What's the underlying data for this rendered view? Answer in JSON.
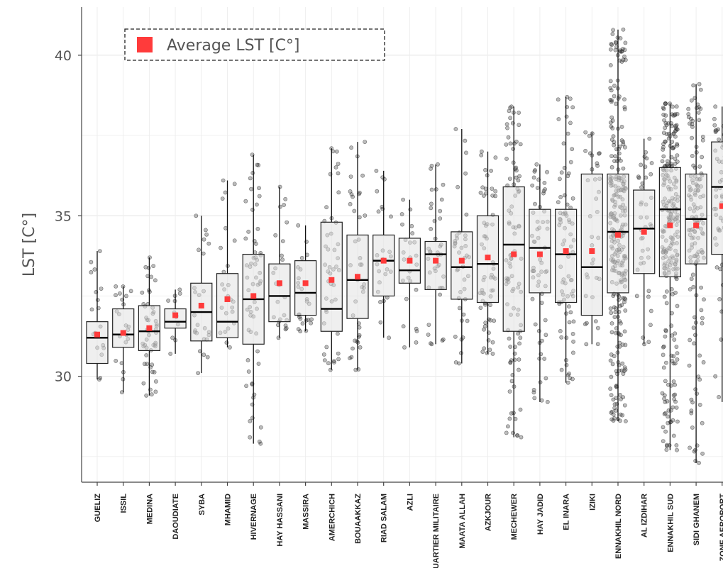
{
  "chart_data": {
    "type": "box",
    "title": "",
    "xlabel": "",
    "ylabel": "LST [C°]",
    "ylim": [
      26.7,
      41.5
    ],
    "yticks": [
      30,
      35,
      40
    ],
    "grid": true,
    "legend": {
      "label": "Average LST [C°]",
      "position": "top-left",
      "color": "#ff3b3b"
    },
    "categories": [
      "GUELIZ",
      "ISSIL",
      "MEDINA",
      "DAOUDIATE",
      "SYBA",
      "MHAMID",
      "HIVERNAGE",
      "HAY HASSANI",
      "MASSIRA",
      "AMERCHICH",
      "BOUAAKKAZ",
      "RIAD SALAM",
      "AZLI",
      "QUARTIER MILITAIRE",
      "MAATA ALLAH",
      "AZKJOUR",
      "MECHEWER",
      "HAY JADID",
      "EL INARA",
      "IZIKI",
      "ENNAKHIL NORD",
      "AL IZDIHAR",
      "ENNAKHIL SUD",
      "SIDI GHANEM",
      "ZONE AEROPORT"
    ],
    "boxes": [
      {
        "min": 29.9,
        "q1": 30.4,
        "median": 31.2,
        "q3": 31.7,
        "max": 33.9,
        "mean": 31.3,
        "n": 18
      },
      {
        "min": 29.5,
        "q1": 30.9,
        "median": 31.3,
        "q3": 32.1,
        "max": 32.8,
        "mean": 31.35,
        "n": 22
      },
      {
        "min": 29.4,
        "q1": 30.8,
        "median": 31.4,
        "q3": 32.2,
        "max": 33.7,
        "mean": 31.5,
        "n": 50
      },
      {
        "min": 30.7,
        "q1": 31.5,
        "median": 31.7,
        "q3": 32.1,
        "max": 32.7,
        "mean": 31.9,
        "n": 12
      },
      {
        "min": 30.1,
        "q1": 31.1,
        "median": 32.0,
        "q3": 32.9,
        "max": 35.0,
        "mean": 32.2,
        "n": 25
      },
      {
        "min": 30.9,
        "q1": 31.2,
        "median": 31.7,
        "q3": 33.2,
        "max": 36.1,
        "mean": 32.4,
        "n": 25
      },
      {
        "min": 27.9,
        "q1": 31.0,
        "median": 32.4,
        "q3": 33.8,
        "max": 36.9,
        "mean": 32.5,
        "n": 60
      },
      {
        "min": 31.2,
        "q1": 31.7,
        "median": 32.5,
        "q3": 33.5,
        "max": 35.9,
        "mean": 32.9,
        "n": 25
      },
      {
        "min": 31.4,
        "q1": 31.9,
        "median": 32.6,
        "q3": 33.6,
        "max": 34.7,
        "mean": 32.9,
        "n": 25
      },
      {
        "min": 30.2,
        "q1": 31.4,
        "median": 32.1,
        "q3": 34.8,
        "max": 37.1,
        "mean": 33.0,
        "n": 45
      },
      {
        "min": 30.2,
        "q1": 31.8,
        "median": 33.0,
        "q3": 34.4,
        "max": 37.3,
        "mean": 33.1,
        "n": 40
      },
      {
        "min": 31.2,
        "q1": 32.5,
        "median": 33.6,
        "q3": 34.4,
        "max": 36.4,
        "mean": 33.6,
        "n": 25
      },
      {
        "min": 30.9,
        "q1": 32.9,
        "median": 33.3,
        "q3": 34.3,
        "max": 35.5,
        "mean": 33.6,
        "n": 25
      },
      {
        "min": 31.0,
        "q1": 32.7,
        "median": 33.8,
        "q3": 34.2,
        "max": 36.6,
        "mean": 33.6,
        "n": 40
      },
      {
        "min": 30.4,
        "q1": 32.4,
        "median": 33.4,
        "q3": 34.5,
        "max": 37.7,
        "mean": 33.6,
        "n": 40
      },
      {
        "min": 30.7,
        "q1": 32.3,
        "median": 33.5,
        "q3": 35.0,
        "max": 37.0,
        "mean": 33.7,
        "n": 60
      },
      {
        "min": 28.1,
        "q1": 31.4,
        "median": 34.1,
        "q3": 35.9,
        "max": 38.4,
        "mean": 33.8,
        "n": 100
      },
      {
        "min": 29.2,
        "q1": 32.6,
        "median": 34.0,
        "q3": 35.2,
        "max": 36.6,
        "mean": 33.8,
        "n": 60
      },
      {
        "min": 29.8,
        "q1": 32.3,
        "median": 33.8,
        "q3": 35.2,
        "max": 38.7,
        "mean": 33.9,
        "n": 80
      },
      {
        "min": 31.0,
        "q1": 31.9,
        "median": 33.4,
        "q3": 36.3,
        "max": 37.6,
        "mean": 33.9,
        "n": 35
      },
      {
        "min": 28.6,
        "q1": 32.6,
        "median": 34.5,
        "q3": 36.3,
        "max": 40.8,
        "mean": 34.4,
        "n": 280
      },
      {
        "min": 31.0,
        "q1": 33.2,
        "median": 34.6,
        "q3": 35.8,
        "max": 37.4,
        "mean": 34.5,
        "n": 40
      },
      {
        "min": 27.7,
        "q1": 33.1,
        "median": 35.2,
        "q3": 36.5,
        "max": 38.5,
        "mean": 34.7,
        "n": 250
      },
      {
        "min": 27.3,
        "q1": 33.5,
        "median": 34.9,
        "q3": 36.3,
        "max": 39.1,
        "mean": 34.7,
        "n": 140
      },
      {
        "min": 29.2,
        "q1": 33.8,
        "median": 35.9,
        "q3": 37.3,
        "max": 38.4,
        "mean": 35.3,
        "n": 80
      }
    ]
  }
}
